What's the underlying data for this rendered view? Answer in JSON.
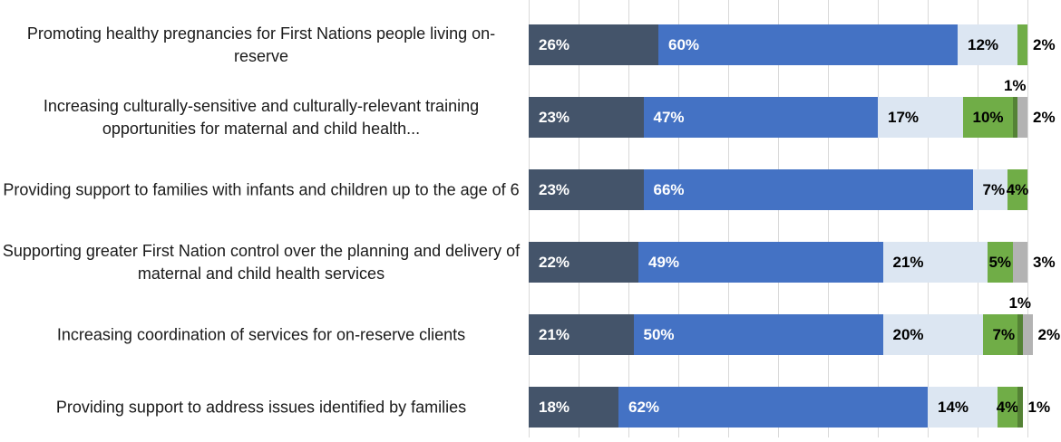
{
  "chart_data": {
    "type": "bar",
    "orientation": "horizontal",
    "stacked": true,
    "title": "",
    "x_axis": {
      "min": 0,
      "max": 100,
      "unit": "%",
      "gridline_interval": 10,
      "gridlines_visible": true,
      "tick_labels_visible": false
    },
    "legend_visible": false,
    "palette": [
      "#44546A",
      "#4472C4",
      "#DCE6F2",
      "#70AD47",
      "#548235",
      "#B3B3B3"
    ],
    "gridline_color": "#D9D9D9",
    "label_text_colors": {
      "on_dark": "#FFFFFF",
      "on_light": "#000000"
    },
    "rows": [
      {
        "category": "Promoting healthy pregnancies for First Nations people living on-reserve",
        "segments": [
          {
            "value": 26,
            "label": "26%",
            "color": 0,
            "label_pos": "in"
          },
          {
            "value": 60,
            "label": "60%",
            "color": 1,
            "label_pos": "in"
          },
          {
            "value": 12,
            "label": "12%",
            "color": 2,
            "label_pos": "in"
          },
          {
            "value": 2,
            "label": "2%",
            "color": 3,
            "label_pos": "out"
          }
        ]
      },
      {
        "category": "Increasing culturally-sensitive and culturally-relevant training opportunities for maternal and child health...",
        "segments": [
          {
            "value": 23,
            "label": "23%",
            "color": 0,
            "label_pos": "in"
          },
          {
            "value": 47,
            "label": "47%",
            "color": 1,
            "label_pos": "in"
          },
          {
            "value": 17,
            "label": "17%",
            "color": 2,
            "label_pos": "in"
          },
          {
            "value": 10,
            "label": "10%",
            "color": 3,
            "label_pos": "in"
          },
          {
            "value": 1,
            "label": "1%",
            "color": 4,
            "label_pos": "above"
          },
          {
            "value": 2,
            "label": "2%",
            "color": 5,
            "label_pos": "out"
          }
        ]
      },
      {
        "category": "Providing support to families with infants and children up to the age of 6",
        "segments": [
          {
            "value": 23,
            "label": "23%",
            "color": 0,
            "label_pos": "in"
          },
          {
            "value": 66,
            "label": "66%",
            "color": 1,
            "label_pos": "in"
          },
          {
            "value": 7,
            "label": "7%",
            "color": 2,
            "label_pos": "in"
          },
          {
            "value": 4,
            "label": "4%",
            "color": 3,
            "label_pos": "in-center"
          }
        ]
      },
      {
        "category": "Supporting greater First Nation control over the planning and delivery of maternal and child health services",
        "segments": [
          {
            "value": 22,
            "label": "22%",
            "color": 0,
            "label_pos": "in"
          },
          {
            "value": 49,
            "label": "49%",
            "color": 1,
            "label_pos": "in"
          },
          {
            "value": 21,
            "label": "21%",
            "color": 2,
            "label_pos": "in"
          },
          {
            "value": 5,
            "label": "5%",
            "color": 3,
            "label_pos": "in-center"
          },
          {
            "value": 3,
            "label": "3%",
            "color": 5,
            "label_pos": "out"
          }
        ]
      },
      {
        "category": "Increasing coordination of services for on-reserve clients",
        "segments": [
          {
            "value": 21,
            "label": "21%",
            "color": 0,
            "label_pos": "in"
          },
          {
            "value": 50,
            "label": "50%",
            "color": 1,
            "label_pos": "in"
          },
          {
            "value": 20,
            "label": "20%",
            "color": 2,
            "label_pos": "in"
          },
          {
            "value": 7,
            "label": "7%",
            "color": 3,
            "label_pos": "in"
          },
          {
            "value": 1,
            "label": "1%",
            "color": 4,
            "label_pos": "above"
          },
          {
            "value": 2,
            "label": "2%",
            "color": 5,
            "label_pos": "out"
          }
        ]
      },
      {
        "category": "Providing support to address issues identified by families",
        "segments": [
          {
            "value": 18,
            "label": "18%",
            "color": 0,
            "label_pos": "in"
          },
          {
            "value": 62,
            "label": "62%",
            "color": 1,
            "label_pos": "in"
          },
          {
            "value": 14,
            "label": "14%",
            "color": 2,
            "label_pos": "in"
          },
          {
            "value": 4,
            "label": "4%",
            "color": 3,
            "label_pos": "in-center"
          },
          {
            "value": 1,
            "label": "1%",
            "color": 4,
            "label_pos": "out"
          }
        ]
      }
    ]
  }
}
